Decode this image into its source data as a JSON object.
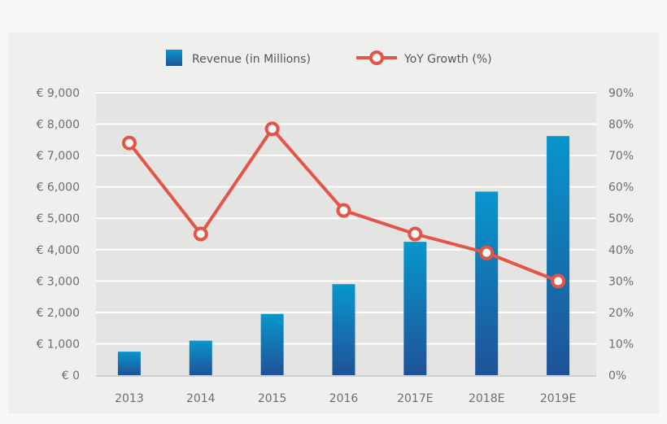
{
  "chart_data": {
    "type": "bar+line",
    "categories": [
      "2013",
      "2014",
      "2015",
      "2016",
      "2017E",
      "2018E",
      "2019E"
    ],
    "series": [
      {
        "name": "Revenue (in Millions)",
        "type": "bar",
        "axis": "left",
        "values": [
          750,
          1100,
          1950,
          2900,
          4250,
          5850,
          7620
        ],
        "color": "#1a6fb0"
      },
      {
        "name": "YoY Growth (%)",
        "type": "line",
        "axis": "right",
        "values": [
          74,
          45,
          78.5,
          52.5,
          45,
          39,
          30
        ],
        "color": "#e45447"
      }
    ],
    "y_left": {
      "range": [
        0,
        9000
      ],
      "ticks": [
        "€ 0",
        "€ 1,000",
        "€ 2,000",
        "€ 3,000",
        "€ 4,000",
        "€ 5,000",
        "€ 6,000",
        "€ 7,000",
        "€ 8,000",
        "€ 9,000"
      ]
    },
    "y_right": {
      "range": [
        0,
        90
      ],
      "ticks": [
        "0%",
        "10%",
        "20%",
        "30%",
        "40%",
        "50%",
        "60%",
        "70%",
        "80%",
        "90%"
      ]
    },
    "grid": true,
    "legend": "top-center"
  }
}
